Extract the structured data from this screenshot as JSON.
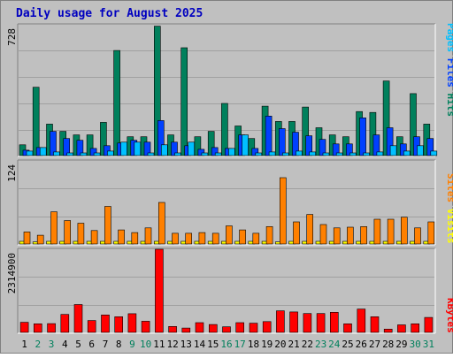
{
  "title": "Daily usage for August 2025",
  "colors": {
    "frame": "#c0c0c0",
    "plot_bg": "#c0c0c0",
    "grid": "#a0a0a0",
    "title": "#0000c0",
    "hits": "#00805c",
    "files": "#0040ff",
    "pages": "#00c0ff",
    "visits": "#ffff00",
    "sites": "#ff8000",
    "kbytes": "#ff0000",
    "weekday": "#000000",
    "weekend": "#00805c"
  },
  "chart_data": [
    {
      "type": "bar",
      "panel": "hits-files-pages",
      "ylim": [
        0,
        728
      ],
      "y_tick_labels": [
        "728"
      ],
      "grid": true,
      "legend": "right-vertical",
      "legend_labels": [
        "Pages",
        "/",
        "Files",
        "/",
        "Hits"
      ],
      "categories": [
        "1",
        "2",
        "3",
        "4",
        "5",
        "6",
        "7",
        "8",
        "9",
        "10",
        "11",
        "12",
        "13",
        "14",
        "15",
        "16",
        "17",
        "18",
        "19",
        "20",
        "21",
        "22",
        "23",
        "24",
        "25",
        "26",
        "27",
        "28",
        "29",
        "30",
        "31"
      ],
      "series": [
        {
          "name": "Hits",
          "values": [
            60,
            380,
            175,
            135,
            115,
            115,
            185,
            585,
            105,
            105,
            720,
            115,
            600,
            105,
            135,
            290,
            165,
            95,
            275,
            190,
            190,
            270,
            155,
            115,
            105,
            245,
            240,
            415,
            105,
            345,
            175
          ]
        },
        {
          "name": "Files",
          "values": [
            30,
            45,
            135,
            95,
            85,
            40,
            55,
            70,
            85,
            75,
            195,
            75,
            55,
            35,
            45,
            40,
            115,
            40,
            220,
            150,
            130,
            110,
            90,
            65,
            65,
            210,
            115,
            155,
            65,
            105,
            95
          ]
        },
        {
          "name": "Pages",
          "values": [
            25,
            45,
            20,
            15,
            15,
            15,
            25,
            75,
            75,
            15,
            60,
            15,
            75,
            15,
            15,
            40,
            115,
            15,
            20,
            15,
            25,
            20,
            15,
            15,
            15,
            15,
            20,
            55,
            25,
            55,
            25
          ]
        }
      ]
    },
    {
      "type": "bar",
      "panel": "visits-sites",
      "ylim": [
        0,
        124
      ],
      "y_tick_labels": [
        "124"
      ],
      "grid": true,
      "legend": "right-vertical",
      "legend_labels": [
        "Sites",
        "/",
        "Visits"
      ],
      "categories": [
        "1",
        "2",
        "3",
        "4",
        "5",
        "6",
        "7",
        "8",
        "9",
        "10",
        "11",
        "12",
        "13",
        "14",
        "15",
        "16",
        "17",
        "18",
        "19",
        "20",
        "21",
        "22",
        "23",
        "24",
        "25",
        "26",
        "27",
        "28",
        "29",
        "30",
        "31"
      ],
      "series": [
        {
          "name": "Visits",
          "values": [
            4,
            3,
            4,
            4,
            4,
            4,
            4,
            4,
            4,
            4,
            4,
            4,
            4,
            4,
            4,
            4,
            4,
            4,
            4,
            3,
            4,
            4,
            4,
            4,
            4,
            4,
            4,
            4,
            4,
            4,
            4
          ]
        },
        {
          "name": "Sites",
          "values": [
            18,
            13,
            48,
            35,
            31,
            20,
            56,
            21,
            17,
            24,
            62,
            16,
            16,
            17,
            16,
            27,
            21,
            16,
            26,
            99,
            33,
            44,
            29,
            24,
            25,
            26,
            37,
            37,
            40,
            24,
            33
          ]
        }
      ]
    },
    {
      "type": "bar",
      "panel": "kbytes",
      "ylim": [
        0,
        2314900
      ],
      "y_tick_labels": [
        "2314900"
      ],
      "grid": true,
      "legend": "right-vertical",
      "legend_labels": [
        "KBytes"
      ],
      "categories": [
        "1",
        "2",
        "3",
        "4",
        "5",
        "6",
        "7",
        "8",
        "9",
        "10",
        "11",
        "12",
        "13",
        "14",
        "15",
        "16",
        "17",
        "18",
        "19",
        "20",
        "21",
        "22",
        "23",
        "24",
        "25",
        "26",
        "27",
        "28",
        "29",
        "30",
        "31"
      ],
      "series": [
        {
          "name": "KBytes",
          "values": [
            280000,
            240000,
            245000,
            500000,
            775000,
            330000,
            485000,
            435000,
            520000,
            310000,
            2314900,
            165000,
            120000,
            270000,
            220000,
            155000,
            270000,
            255000,
            300000,
            600000,
            570000,
            525000,
            525000,
            560000,
            240000,
            650000,
            435000,
            90000,
            210000,
            240000,
            415000
          ]
        }
      ]
    }
  ],
  "days": [
    {
      "label": "1",
      "weekend": false
    },
    {
      "label": "2",
      "weekend": true
    },
    {
      "label": "3",
      "weekend": true
    },
    {
      "label": "4",
      "weekend": false
    },
    {
      "label": "5",
      "weekend": false
    },
    {
      "label": "6",
      "weekend": false
    },
    {
      "label": "7",
      "weekend": false
    },
    {
      "label": "8",
      "weekend": false
    },
    {
      "label": "9",
      "weekend": true
    },
    {
      "label": "10",
      "weekend": true
    },
    {
      "label": "11",
      "weekend": false
    },
    {
      "label": "12",
      "weekend": false
    },
    {
      "label": "13",
      "weekend": false
    },
    {
      "label": "14",
      "weekend": false
    },
    {
      "label": "15",
      "weekend": false
    },
    {
      "label": "16",
      "weekend": true
    },
    {
      "label": "17",
      "weekend": true
    },
    {
      "label": "18",
      "weekend": false
    },
    {
      "label": "19",
      "weekend": false
    },
    {
      "label": "20",
      "weekend": false
    },
    {
      "label": "21",
      "weekend": false
    },
    {
      "label": "22",
      "weekend": false
    },
    {
      "label": "23",
      "weekend": true
    },
    {
      "label": "24",
      "weekend": true
    },
    {
      "label": "25",
      "weekend": false
    },
    {
      "label": "26",
      "weekend": false
    },
    {
      "label": "27",
      "weekend": false
    },
    {
      "label": "28",
      "weekend": false
    },
    {
      "label": "29",
      "weekend": false
    },
    {
      "label": "30",
      "weekend": true
    },
    {
      "label": "31",
      "weekend": true
    }
  ]
}
